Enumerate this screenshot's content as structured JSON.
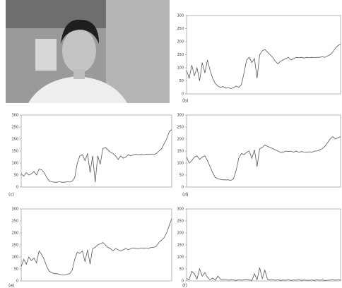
{
  "chart_data": [
    {
      "type": "line",
      "label": "(b)",
      "color": "#555555",
      "ylim": [
        0,
        300
      ],
      "yticks": [
        0,
        50,
        100,
        150,
        200,
        250,
        300
      ],
      "values": [
        90,
        60,
        110,
        70,
        100,
        50,
        120,
        80,
        130,
        90,
        60,
        40,
        30,
        25,
        28,
        22,
        25,
        20,
        24,
        30,
        25,
        35,
        80,
        130,
        140,
        120,
        135,
        60,
        150,
        165,
        170,
        160,
        150,
        140,
        125,
        115,
        125,
        130,
        135,
        140,
        130,
        135,
        140,
        138,
        140,
        137,
        140,
        138,
        140,
        139,
        140,
        140,
        142,
        140,
        145,
        150,
        160,
        175,
        185,
        190
      ]
    },
    {
      "type": "line",
      "label": "(c)",
      "color": "#555555",
      "ylim": [
        0,
        300
      ],
      "yticks": [
        0,
        50,
        100,
        150,
        200,
        250,
        300
      ],
      "values": [
        55,
        45,
        60,
        50,
        55,
        65,
        50,
        75,
        72,
        60,
        40,
        25,
        22,
        20,
        20,
        22,
        20,
        20,
        22,
        21,
        25,
        40,
        100,
        130,
        135,
        110,
        140,
        60,
        130,
        20,
        130,
        95,
        160,
        165,
        155,
        145,
        140,
        130,
        115,
        130,
        120,
        125,
        135,
        130,
        135,
        137,
        135,
        136,
        135,
        137,
        136,
        138,
        135,
        140,
        150,
        160,
        180,
        200,
        230,
        240
      ]
    },
    {
      "type": "line",
      "label": "(d)",
      "color": "#555555",
      "ylim": [
        0,
        300
      ],
      "yticks": [
        0,
        50,
        100,
        150,
        200,
        250,
        300
      ],
      "values": [
        125,
        100,
        110,
        125,
        130,
        115,
        125,
        130,
        110,
        85,
        60,
        40,
        35,
        32,
        30,
        30,
        30,
        28,
        35,
        70,
        120,
        140,
        135,
        145,
        150,
        120,
        155,
        85,
        160,
        165,
        175,
        170,
        165,
        160,
        155,
        150,
        145,
        145,
        150,
        148,
        150,
        145,
        150,
        145,
        148,
        146,
        145,
        147,
        145,
        150,
        150,
        155,
        160,
        170,
        185,
        200,
        210,
        200,
        205,
        210
      ]
    },
    {
      "type": "line",
      "label": "(e)",
      "color": "#555555",
      "ylim": [
        0,
        300
      ],
      "yticks": [
        0,
        50,
        100,
        150,
        200,
        250,
        300
      ],
      "values": [
        60,
        90,
        70,
        100,
        85,
        95,
        75,
        125,
        110,
        90,
        60,
        40,
        35,
        30,
        30,
        28,
        25,
        25,
        28,
        30,
        45,
        90,
        120,
        115,
        125,
        80,
        130,
        70,
        135,
        140,
        150,
        155,
        160,
        150,
        140,
        135,
        125,
        135,
        130,
        125,
        130,
        135,
        130,
        135,
        137,
        136,
        135,
        137,
        136,
        138,
        135,
        140,
        140,
        145,
        160,
        170,
        180,
        200,
        230,
        260
      ]
    },
    {
      "type": "line",
      "label": "(f)",
      "color": "#555555",
      "ylim": [
        0,
        300
      ],
      "yticks": [
        0,
        50,
        100,
        150,
        200,
        250,
        300
      ],
      "values": [
        10,
        5,
        40,
        30,
        8,
        50,
        20,
        35,
        15,
        5,
        12,
        3,
        20,
        8,
        4,
        6,
        3,
        5,
        4,
        2,
        6,
        3,
        5,
        8,
        4,
        2,
        30,
        5,
        55,
        10,
        45,
        8,
        4,
        6,
        3,
        5,
        2,
        4,
        3,
        6,
        2,
        4,
        3,
        5,
        2,
        4,
        3,
        3,
        4,
        2,
        5,
        3,
        4,
        2,
        3,
        4,
        5,
        3,
        6,
        4
      ]
    }
  ]
}
